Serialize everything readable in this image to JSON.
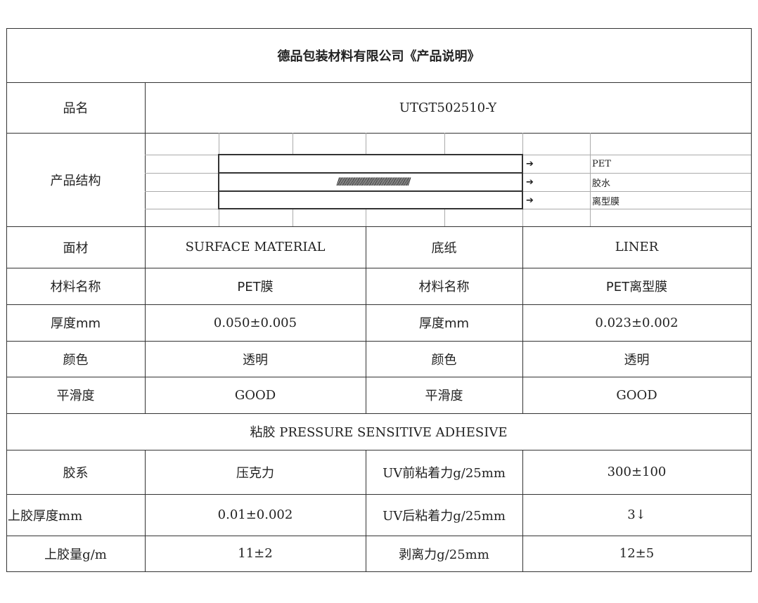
{
  "title": "德品包装材料有限公司《产品说明》",
  "product_name": {
    "label": "品名",
    "value": "UTGT502510-Y"
  },
  "structure": {
    "label": "产品结构",
    "hatch": "////////////////////////////////////////////////////////////",
    "layers": [
      "PET",
      "胶水",
      "离型膜"
    ],
    "arrow": "➔"
  },
  "surface": {
    "label": "面材",
    "value": "SURFACE MATERIAL"
  },
  "liner": {
    "label": "底纸",
    "value": "LINER"
  },
  "rows": [
    {
      "l1": "材料名称",
      "v1": "PET膜",
      "l2": "材料名称",
      "v2": "PET离型膜"
    },
    {
      "l1": "厚度mm",
      "v1": "0.050±0.005",
      "l2": "厚度mm",
      "v2": "0.023±0.002"
    },
    {
      "l1": "颜色",
      "v1": "透明",
      "l2": "颜色",
      "v2": "透明"
    },
    {
      "l1": "平滑度",
      "v1": "GOOD",
      "l2": "平滑度",
      "v2": "GOOD"
    }
  ],
  "adhesive_header": "粘胶 PRESSURE SENSITIVE ADHESIVE",
  "adhesive_rows": [
    {
      "l1": "胶系",
      "v1": "压克力",
      "l2": "UV前粘着力g/25mm",
      "v2": "300±100"
    },
    {
      "l1": "上胶厚度mm",
      "v1": "0.01±0.002",
      "l2": "UV后粘着力g/25mm",
      "v2": "3↓"
    },
    {
      "l1": "上胶量g/m",
      "v1": "11±2",
      "l2": "剥离力g/25mm",
      "v2": "12±5"
    }
  ]
}
